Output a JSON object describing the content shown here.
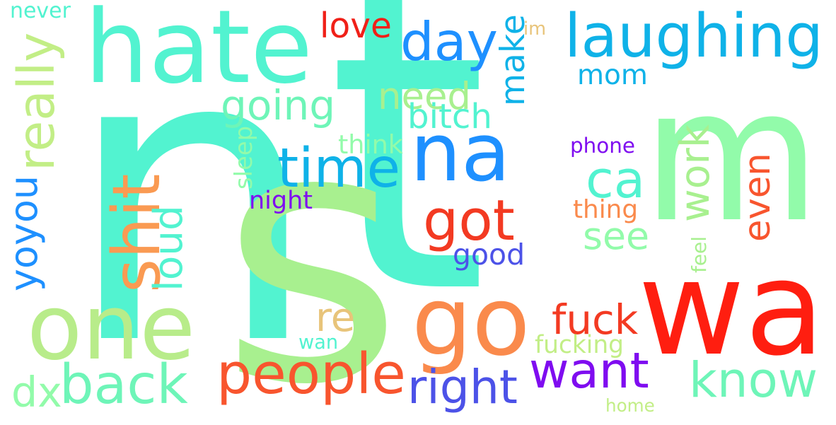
{
  "colors": {
    "background": "#ffffff",
    "aqua": "#52f3d0",
    "mint": "#92fbaa",
    "light_green": "#a8f08f",
    "sky_blue": "#0fb2e8",
    "blue": "#1e90ff",
    "red": "#ff1e10",
    "orange_red": "#f33a22",
    "orange": "#fa8a4c",
    "purple": "#7f0cf0",
    "indigo": "#4c52e8",
    "tan": "#e8c47a"
  },
  "words": [
    {
      "id": "n",
      "text": "n",
      "color": "#52f3d0",
      "vertical": false
    },
    {
      "id": "t",
      "text": "t",
      "color": "#52f3d0",
      "vertical": false
    },
    {
      "id": "m",
      "text": "m",
      "color": "#92fbaa",
      "vertical": false
    },
    {
      "id": "s",
      "text": "s",
      "color": "#a8f08f",
      "vertical": false
    },
    {
      "id": "wa",
      "text": "wa",
      "color": "#ff1e10",
      "vertical": false
    },
    {
      "id": "hate",
      "text": "hate",
      "color": "#52f3d0",
      "vertical": false
    },
    {
      "id": "na",
      "text": "na",
      "color": "#1e90ff",
      "vertical": false
    },
    {
      "id": "go",
      "text": "go",
      "color": "#fa8a4c",
      "vertical": false
    },
    {
      "id": "one",
      "text": "one",
      "color": "#b8ec8a",
      "vertical": false
    },
    {
      "id": "laughing",
      "text": "laughing",
      "color": "#0fb2e8",
      "vertical": false
    },
    {
      "id": "day",
      "text": "day",
      "color": "#1e90ff",
      "vertical": false
    },
    {
      "id": "time",
      "text": "time",
      "color": "#0fb2e8",
      "vertical": false
    },
    {
      "id": "ca",
      "text": "ca",
      "color": "#52f3d0",
      "vertical": false
    },
    {
      "id": "got",
      "text": "got",
      "color": "#f33a22",
      "vertical": false
    },
    {
      "id": "people",
      "text": "people",
      "color": "#f8552e",
      "vertical": false
    },
    {
      "id": "back",
      "text": "back",
      "color": "#6ef5b8",
      "vertical": false
    },
    {
      "id": "want",
      "text": "want",
      "color": "#7f0cf0",
      "vertical": false
    },
    {
      "id": "know",
      "text": "know",
      "color": "#6ef5b8",
      "vertical": false
    },
    {
      "id": "going",
      "text": "going",
      "color": "#6ef5b8",
      "vertical": false
    },
    {
      "id": "need",
      "text": "need",
      "color": "#a8f08f",
      "vertical": false
    },
    {
      "id": "mom",
      "text": "mom",
      "color": "#0fb2e8",
      "vertical": false
    },
    {
      "id": "see",
      "text": "see",
      "color": "#92fbaa",
      "vertical": false
    },
    {
      "id": "fuck",
      "text": "fuck",
      "color": "#f33a22",
      "vertical": false
    },
    {
      "id": "right",
      "text": "right",
      "color": "#4c52e8",
      "vertical": false
    },
    {
      "id": "dx",
      "text": "dx",
      "color": "#92fbaa",
      "vertical": false
    },
    {
      "id": "love",
      "text": "love",
      "color": "#f02018",
      "vertical": false
    },
    {
      "id": "good",
      "text": "good",
      "color": "#4c52e8",
      "vertical": false
    },
    {
      "id": "re",
      "text": "re",
      "color": "#e8c47a",
      "vertical": false
    },
    {
      "id": "bitch",
      "text": "bitch",
      "color": "#52f3d0",
      "vertical": false
    },
    {
      "id": "think",
      "text": "think",
      "color": "#92fbaa",
      "vertical": false
    },
    {
      "id": "phone",
      "text": "phone",
      "color": "#7f0cf0",
      "vertical": false
    },
    {
      "id": "night",
      "text": "night",
      "color": "#7f0cf0",
      "vertical": false
    },
    {
      "id": "thing",
      "text": "thing",
      "color": "#fa8a4c",
      "vertical": false
    },
    {
      "id": "wan",
      "text": "wan",
      "color": "#52f3d0",
      "vertical": false
    },
    {
      "id": "fucking",
      "text": "fucking",
      "color": "#c2ee86",
      "vertical": false
    },
    {
      "id": "home",
      "text": "home",
      "color": "#c2ee86",
      "vertical": false
    },
    {
      "id": "never",
      "text": "never",
      "color": "#52f3d0",
      "vertical": false
    },
    {
      "id": "im",
      "text": "im",
      "color": "#e8c47a",
      "vertical": false
    },
    {
      "id": "really",
      "text": "really",
      "color": "#c2ee86",
      "vertical": true
    },
    {
      "id": "yoyou",
      "text": "yoyou",
      "color": "#1e90ff",
      "vertical": true
    },
    {
      "id": "shit",
      "text": "shit",
      "color": "#fa9a52",
      "vertical": true
    },
    {
      "id": "loud",
      "text": "loud",
      "color": "#52f3d0",
      "vertical": true
    },
    {
      "id": "make",
      "text": "make",
      "color": "#0fb2e8",
      "vertical": true
    },
    {
      "id": "sleep",
      "text": "sleep",
      "color": "#92fbaa",
      "vertical": true
    },
    {
      "id": "work",
      "text": "work",
      "color": "#a8f08f",
      "vertical": true
    },
    {
      "id": "even",
      "text": "even",
      "color": "#f8552e",
      "vertical": true
    },
    {
      "id": "feel",
      "text": "feel",
      "color": "#a8f08f",
      "vertical": true
    }
  ]
}
